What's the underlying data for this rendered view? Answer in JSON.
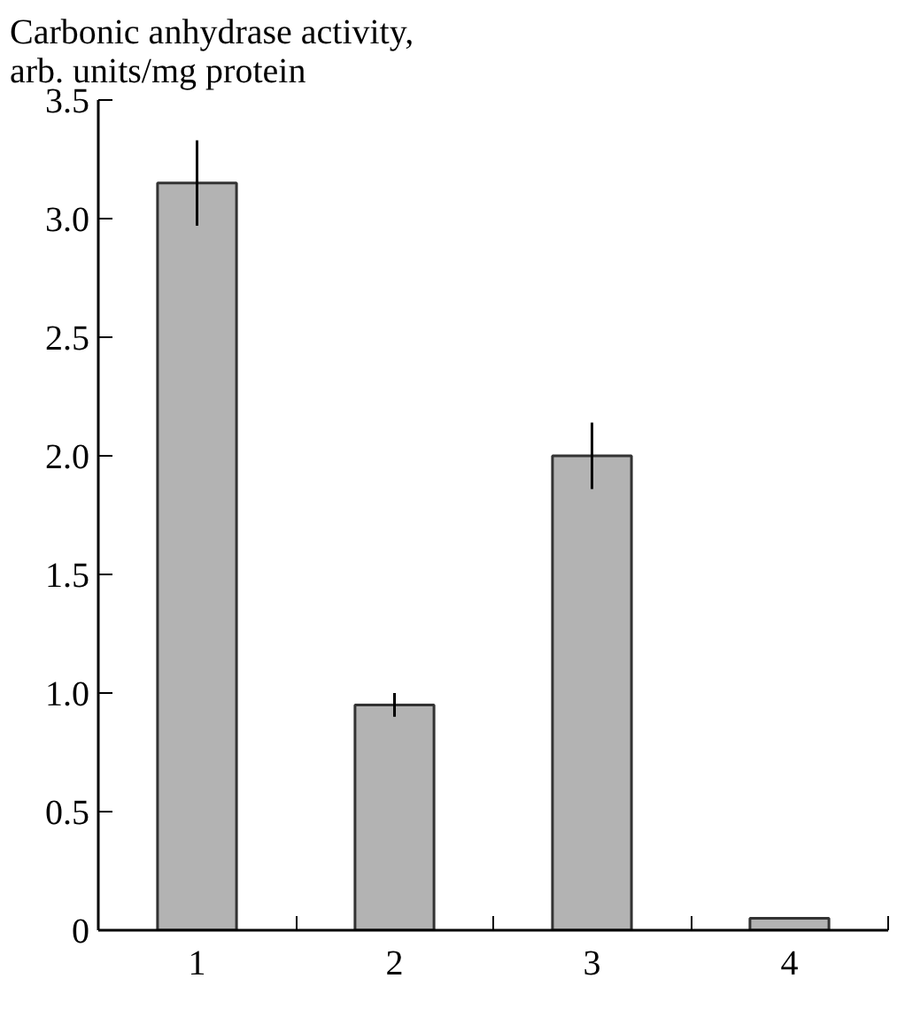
{
  "chart_data": {
    "type": "bar",
    "ylabel": "Carbonic anhydrase activity,\narb. units/mg protein",
    "categories": [
      "1",
      "2",
      "3",
      "4"
    ],
    "values": [
      3.15,
      0.95,
      2.0,
      0.05
    ],
    "errors": [
      0.18,
      0.05,
      0.14,
      null
    ],
    "color": "#b3b3b3",
    "ylim": [
      0,
      3.5
    ],
    "yticks": [
      0,
      0.5,
      {
        "value": 1,
        "label": "1.0"
      },
      1.5,
      {
        "value": 2,
        "label": "2.0"
      },
      2.5,
      {
        "value": 3,
        "label": "3.0"
      },
      3.5
    ],
    "grid": false
  }
}
